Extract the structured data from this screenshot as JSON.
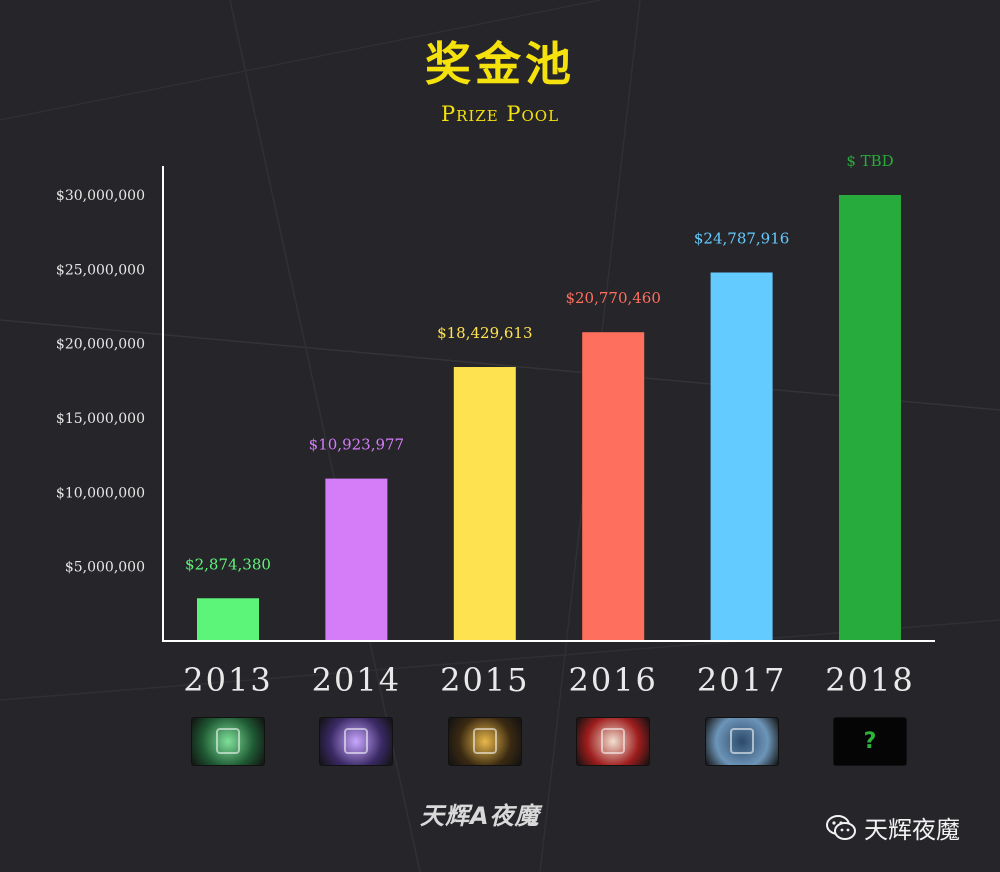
{
  "header": {
    "title": "奖金池",
    "subtitle": "Prize Pool"
  },
  "colors": {
    "title": "#f5e10c",
    "axis": "#ffffff",
    "background": "#26262a"
  },
  "chart_data": {
    "type": "bar",
    "title": "奖金池",
    "subtitle": "Prize Pool",
    "xlabel": "",
    "ylabel": "",
    "categories": [
      "2013",
      "2014",
      "2015",
      "2016",
      "2017",
      "2018"
    ],
    "values": [
      2874380,
      10923977,
      18429613,
      20770460,
      24787916,
      30000000
    ],
    "value_labels": [
      "$2,874,380",
      "$10,923,977",
      "$18,429,613",
      "$20,770,460",
      "$24,787,916",
      "$ TBD"
    ],
    "colors": [
      "#5df47a",
      "#d57cf9",
      "#ffe24f",
      "#ff6f5e",
      "#63cbff",
      "#26ab3c"
    ],
    "yticks": [
      5000000,
      10000000,
      15000000,
      20000000,
      25000000,
      30000000
    ],
    "ytick_labels": [
      "$5,000,000",
      "$10,000,000",
      "$15,000,000",
      "$20,000,000",
      "$25,000,000",
      "$30,000,000"
    ],
    "ylim": [
      0,
      30000000
    ],
    "grid": false,
    "legend": "none"
  },
  "year_icons": [
    {
      "year": "2013",
      "icon": "compendium-green-icon",
      "bg": "#1f5a34",
      "fg": "#7fe09a"
    },
    {
      "year": "2014",
      "icon": "compendium-purple-icon",
      "bg": "#3b2a66",
      "fg": "#c8a7ff"
    },
    {
      "year": "2015",
      "icon": "compendium-gold-icon",
      "bg": "#3b2a12",
      "fg": "#e9b84a"
    },
    {
      "year": "2016",
      "icon": "dota-logo-red-icon",
      "bg": "#9e1d1d",
      "fg": "#f0e0d0"
    },
    {
      "year": "2017",
      "icon": "battle-pass-shield-icon",
      "bg": "#6d95b8",
      "fg": "#2c4a6a"
    },
    {
      "year": "2018",
      "icon": "unknown-question-icon",
      "bg": "#050505",
      "fg": "#2db23a",
      "text": "?"
    }
  ],
  "footer": {
    "brand": "天辉A夜魔",
    "wechat_account": "天辉夜魔"
  }
}
